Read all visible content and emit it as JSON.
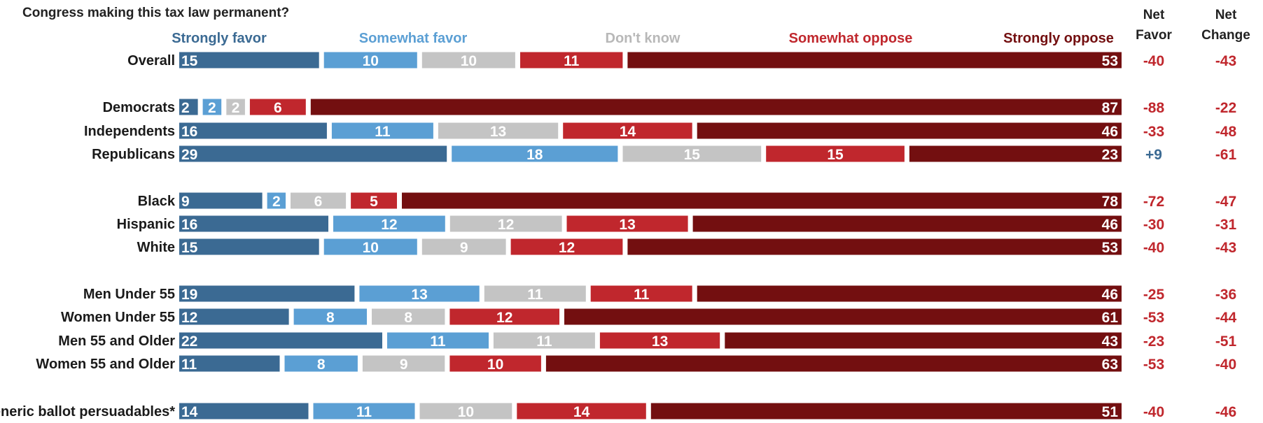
{
  "question": "Congress making this tax law permanent?",
  "columns": {
    "net_favor": [
      "Net",
      "Favor"
    ],
    "net_change": [
      "Net",
      "Change"
    ]
  },
  "colors": {
    "strongly_favor": "#3b6a93",
    "somewhat_favor": "#5b9fd4",
    "dont_know": "#c4c4c4",
    "somewhat_oppose": "#c0272d",
    "strongly_oppose": "#730f10",
    "positive": "#3b6a93",
    "negative": "#c0272d"
  },
  "chart_data": {
    "type": "bar",
    "stacked": true,
    "orientation": "horizontal",
    "series": [
      {
        "name": "Strongly favor",
        "color": "#3b6a93"
      },
      {
        "name": "Somewhat favor",
        "color": "#5b9fd4"
      },
      {
        "name": "Don't know",
        "color": "#c4c4c4"
      },
      {
        "name": "Somewhat oppose",
        "color": "#c0272d"
      },
      {
        "name": "Strongly oppose",
        "color": "#730f10"
      }
    ],
    "rows": [
      {
        "label": "Overall",
        "values": [
          15,
          10,
          10,
          11,
          53
        ],
        "net_favor": "-40",
        "net_change": "-43"
      },
      {
        "label": "Democrats",
        "values": [
          2,
          2,
          2,
          6,
          87
        ],
        "net_favor": "-88",
        "net_change": "-22"
      },
      {
        "label": "Independents",
        "values": [
          16,
          11,
          13,
          14,
          46
        ],
        "net_favor": "-33",
        "net_change": "-48"
      },
      {
        "label": "Republicans",
        "values": [
          29,
          18,
          15,
          15,
          23
        ],
        "net_favor": "+9",
        "net_change": "-61"
      },
      {
        "label": "Black",
        "values": [
          9,
          2,
          6,
          5,
          78
        ],
        "net_favor": "-72",
        "net_change": "-47"
      },
      {
        "label": "Hispanic",
        "values": [
          16,
          12,
          12,
          13,
          46
        ],
        "net_favor": "-30",
        "net_change": "-31"
      },
      {
        "label": "White",
        "values": [
          15,
          10,
          9,
          12,
          53
        ],
        "net_favor": "-40",
        "net_change": "-43"
      },
      {
        "label": "Men Under 55",
        "values": [
          19,
          13,
          11,
          11,
          46
        ],
        "net_favor": "-25",
        "net_change": "-36"
      },
      {
        "label": "Women Under 55",
        "values": [
          12,
          8,
          8,
          12,
          61
        ],
        "net_favor": "-53",
        "net_change": "-44"
      },
      {
        "label": "Men 55 and Older",
        "values": [
          22,
          11,
          11,
          13,
          43
        ],
        "net_favor": "-23",
        "net_change": "-51"
      },
      {
        "label": "Women 55 and Older",
        "values": [
          11,
          8,
          9,
          10,
          63
        ],
        "net_favor": "-53",
        "net_change": "-40"
      },
      {
        "label": "Generic ballot persuadables*",
        "values": [
          14,
          11,
          10,
          14,
          51
        ],
        "net_favor": "-40",
        "net_change": "-46"
      }
    ]
  }
}
